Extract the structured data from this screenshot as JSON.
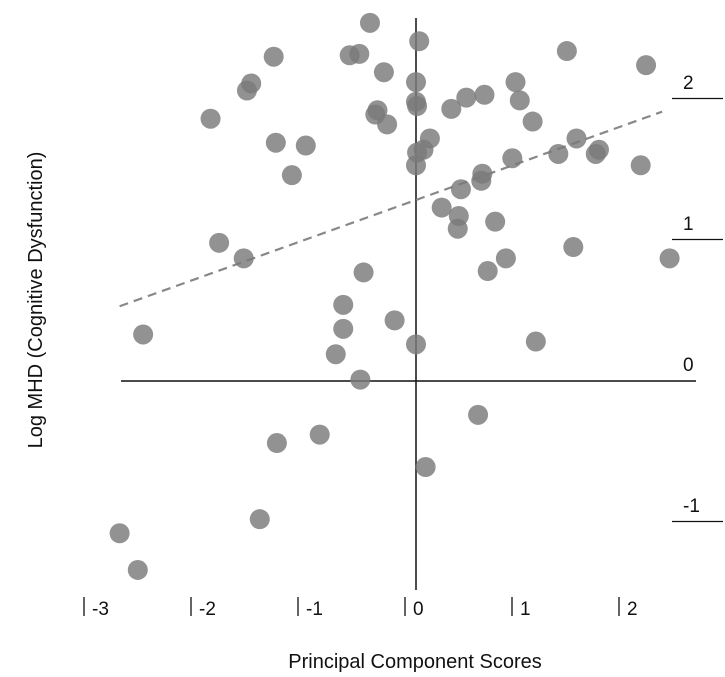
{
  "chart_data": {
    "type": "scatter",
    "title": "",
    "xlabel": "Principal Component Scores",
    "ylabel": "Log MHD (Cognitive Dysfunction)",
    "xlim": [
      -3.2,
      2.5
    ],
    "ylim": [
      -1.35,
      2.55
    ],
    "x_ticks": [
      {
        "value": -3,
        "label": "-3"
      },
      {
        "value": -2,
        "label": "-2"
      },
      {
        "value": -1,
        "label": "-1"
      },
      {
        "value": 0,
        "label": "0"
      },
      {
        "value": 1,
        "label": "1"
      },
      {
        "value": 2,
        "label": "2"
      }
    ],
    "y_ticks": [
      {
        "value": 2,
        "label": "2"
      },
      {
        "value": 1,
        "label": "1"
      },
      {
        "value": 0,
        "label": "0"
      },
      {
        "value": -1,
        "label": "-1"
      }
    ],
    "grid": false,
    "point_color": "#7a7a7a",
    "trend_color": "#888888",
    "trend_line": {
      "x": [
        -2.77,
        2.3
      ],
      "y": [
        0.53,
        1.91
      ]
    },
    "points": [
      {
        "x": -0.43,
        "y": 2.54
      },
      {
        "x": 0.03,
        "y": 2.41
      },
      {
        "x": -0.62,
        "y": 2.31
      },
      {
        "x": -0.53,
        "y": 2.32
      },
      {
        "x": -1.33,
        "y": 2.3
      },
      {
        "x": 1.41,
        "y": 2.34
      },
      {
        "x": 2.15,
        "y": 2.24
      },
      {
        "x": -0.3,
        "y": 2.19
      },
      {
        "x": -1.54,
        "y": 2.11
      },
      {
        "x": -1.58,
        "y": 2.06
      },
      {
        "x": 0.0,
        "y": 2.12
      },
      {
        "x": 0.93,
        "y": 2.12
      },
      {
        "x": 0.64,
        "y": 2.03
      },
      {
        "x": 0.47,
        "y": 2.01
      },
      {
        "x": 0.0,
        "y": 1.98
      },
      {
        "x": 0.01,
        "y": 1.95
      },
      {
        "x": -0.36,
        "y": 1.92
      },
      {
        "x": -0.38,
        "y": 1.89
      },
      {
        "x": 0.97,
        "y": 1.99
      },
      {
        "x": 0.33,
        "y": 1.93
      },
      {
        "x": -1.92,
        "y": 1.86
      },
      {
        "x": -0.27,
        "y": 1.82
      },
      {
        "x": 1.09,
        "y": 1.84
      },
      {
        "x": -1.31,
        "y": 1.69
      },
      {
        "x": -1.03,
        "y": 1.67
      },
      {
        "x": 0.13,
        "y": 1.72
      },
      {
        "x": 1.5,
        "y": 1.72
      },
      {
        "x": 0.07,
        "y": 1.64
      },
      {
        "x": 0.01,
        "y": 1.62
      },
      {
        "x": 1.71,
        "y": 1.64
      },
      {
        "x": 1.68,
        "y": 1.61
      },
      {
        "x": 1.33,
        "y": 1.61
      },
      {
        "x": 0.9,
        "y": 1.58
      },
      {
        "x": 0.0,
        "y": 1.53
      },
      {
        "x": 2.1,
        "y": 1.53
      },
      {
        "x": -1.16,
        "y": 1.46
      },
      {
        "x": 0.62,
        "y": 1.47
      },
      {
        "x": 0.61,
        "y": 1.42
      },
      {
        "x": 0.42,
        "y": 1.36
      },
      {
        "x": 0.24,
        "y": 1.23
      },
      {
        "x": 0.4,
        "y": 1.17
      },
      {
        "x": 0.74,
        "y": 1.13
      },
      {
        "x": 0.39,
        "y": 1.08
      },
      {
        "x": -1.84,
        "y": 0.98
      },
      {
        "x": -1.61,
        "y": 0.87
      },
      {
        "x": 1.47,
        "y": 0.95
      },
      {
        "x": 0.84,
        "y": 0.87
      },
      {
        "x": 2.37,
        "y": 0.87
      },
      {
        "x": 0.67,
        "y": 0.78
      },
      {
        "x": -0.49,
        "y": 0.77
      },
      {
        "x": -0.68,
        "y": 0.54
      },
      {
        "x": -2.55,
        "y": 0.33
      },
      {
        "x": -0.2,
        "y": 0.43
      },
      {
        "x": -0.68,
        "y": 0.37
      },
      {
        "x": 1.12,
        "y": 0.28
      },
      {
        "x": 0.0,
        "y": 0.26
      },
      {
        "x": -0.75,
        "y": 0.19
      },
      {
        "x": -0.52,
        "y": 0.01
      },
      {
        "x": 0.58,
        "y": -0.24
      },
      {
        "x": -0.9,
        "y": -0.38
      },
      {
        "x": -1.3,
        "y": -0.44
      },
      {
        "x": 0.09,
        "y": -0.61
      },
      {
        "x": -1.46,
        "y": -0.98
      },
      {
        "x": -2.77,
        "y": -1.08
      },
      {
        "x": -2.6,
        "y": -1.34
      }
    ]
  }
}
